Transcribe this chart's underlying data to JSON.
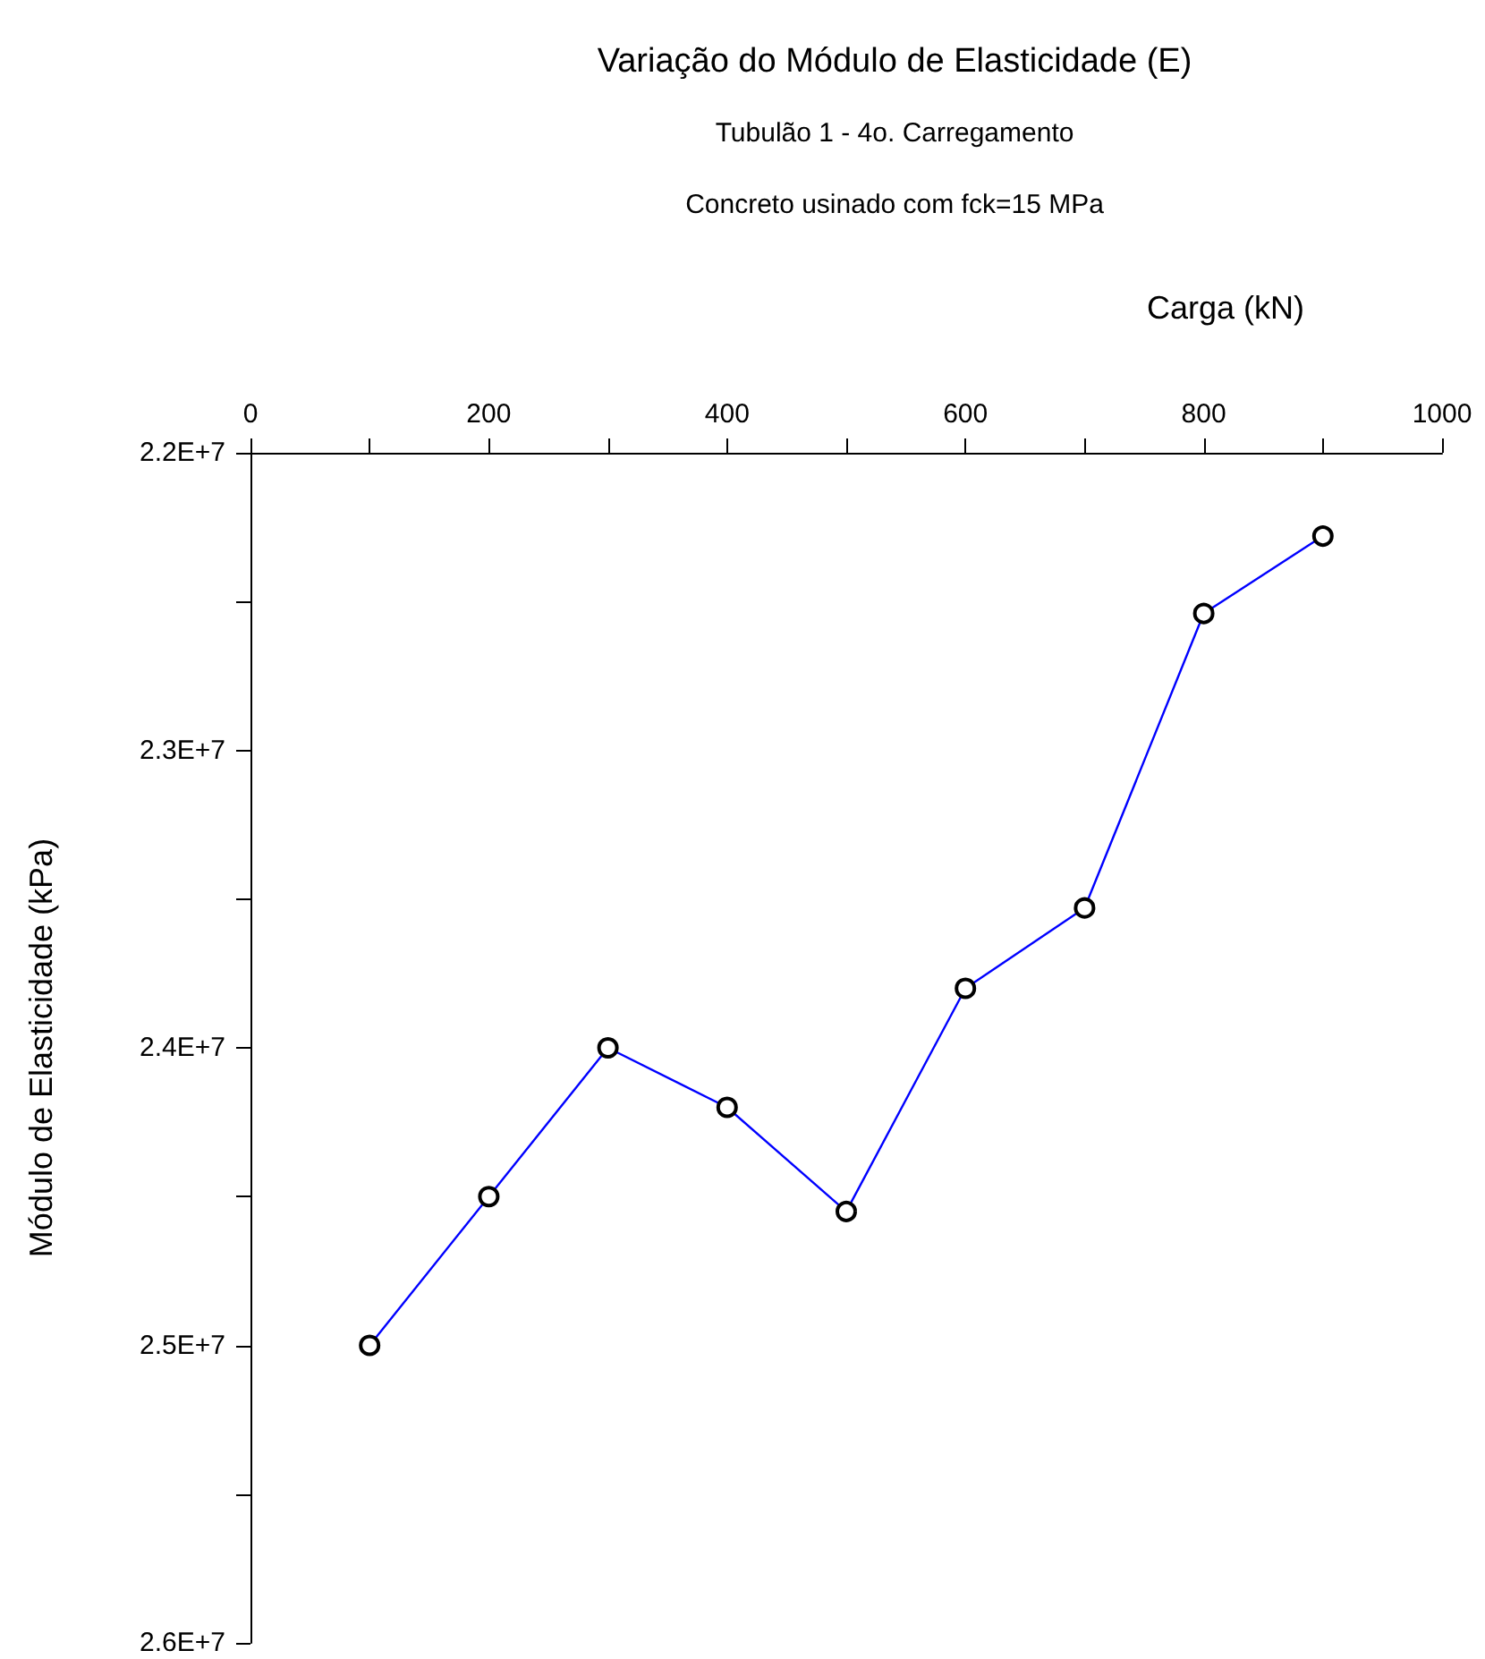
{
  "chart_data": {
    "type": "line",
    "title": "Variação do Módulo de Elasticidade (E)",
    "subtitle": "Tubulão 1 - 4o. Carregamento\nConcreto usinado com fck=15 MPa",
    "xlabel": "Carga (kN)",
    "ylabel": "Módulo de Elasticidade (kPa)",
    "x": [
      100,
      200,
      300,
      400,
      500,
      600,
      700,
      800,
      900
    ],
    "series": [
      {
        "color": "#0000ff",
        "values": [
          25000000,
          24500000,
          24000000,
          24200000,
          24550000,
          23800000,
          23530000,
          22540000,
          22280000
        ]
      }
    ],
    "xlim": [
      0,
      1000
    ],
    "xticks": [
      0,
      {
        "value": 100,
        "label": null
      },
      200,
      {
        "value": 300,
        "label": null
      },
      400,
      {
        "value": 500,
        "label": null
      },
      600,
      {
        "value": 700,
        "label": null
      },
      800,
      {
        "value": 900,
        "label": null
      },
      1000
    ],
    "ylim": [
      26000000,
      22000000
    ],
    "yticks": [
      {
        "value": 22000000,
        "label": "2.2E+7"
      },
      {
        "value": 22500000,
        "label": null
      },
      {
        "value": 23000000,
        "label": "2.3E+7"
      },
      {
        "value": 23500000,
        "label": null
      },
      {
        "value": 24000000,
        "label": "2.4E+7"
      },
      {
        "value": 24500000,
        "label": null
      },
      {
        "value": 25000000,
        "label": "2.5E+7"
      },
      {
        "value": 25500000,
        "label": null
      },
      {
        "value": 26000000,
        "label": "2.6E+7"
      }
    ],
    "grid": false,
    "marker": "circle",
    "line_style": "solid"
  }
}
